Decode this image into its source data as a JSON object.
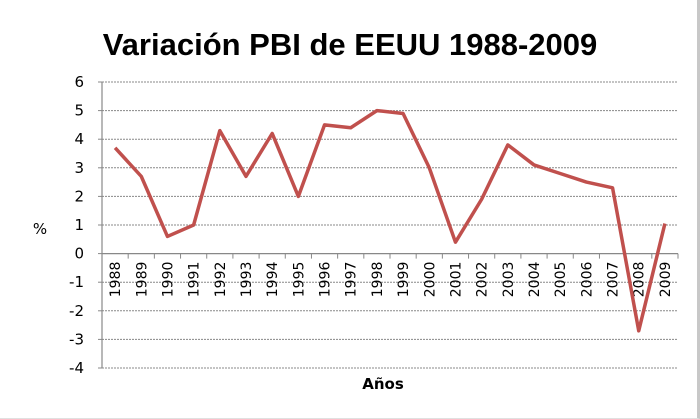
{
  "chart_data": {
    "type": "line",
    "title": "Variación PBI de EEUU 1988-2009",
    "xlabel": "Años",
    "ylabel": "%",
    "ylim": [
      -4,
      6
    ],
    "yticks": [
      "6",
      "5",
      "4",
      "3",
      "2",
      "1",
      "0",
      "-1",
      "-2",
      "-3",
      "-4"
    ],
    "grid": true,
    "categories": [
      "1988",
      "1989",
      "1990",
      "1991",
      "1992",
      "1993",
      "1994",
      "1995",
      "1996",
      "1997",
      "1998",
      "1999",
      "2000",
      "2001",
      "2002",
      "2003",
      "2004",
      "2005",
      "2006",
      "2007",
      "2008",
      "2009"
    ],
    "series": [
      {
        "name": "Variación PBI",
        "color": "#c0504d",
        "values": [
          3.7,
          2.7,
          0.6,
          1.0,
          4.3,
          2.7,
          4.2,
          2.0,
          4.5,
          4.4,
          5.0,
          4.9,
          3.0,
          0.4,
          1.9,
          3.8,
          3.1,
          2.8,
          2.5,
          2.3,
          -2.7,
          1.05
        ]
      }
    ]
  }
}
